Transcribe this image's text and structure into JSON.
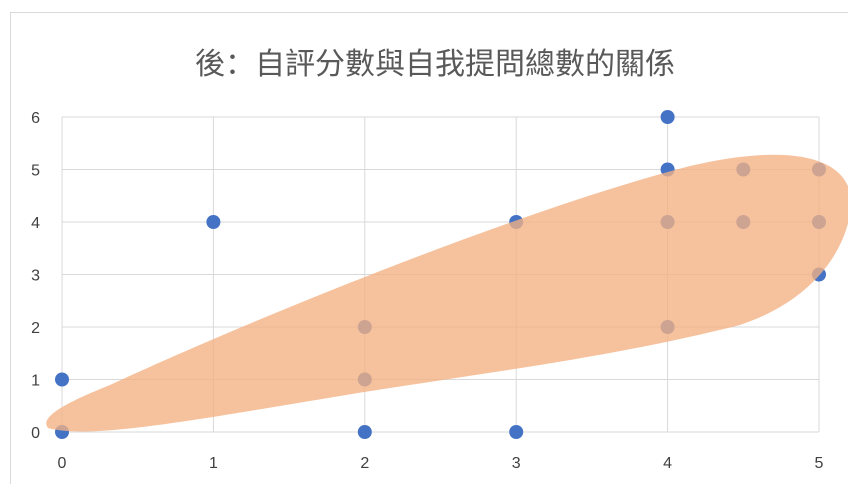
{
  "chart_data": {
    "type": "scatter",
    "title": "後：自評分數與自我提問總數的關係",
    "xlabel": "",
    "ylabel": "",
    "xlim": [
      0,
      5
    ],
    "ylim": [
      0,
      6
    ],
    "xticks": [
      "0",
      "1",
      "2",
      "3",
      "4",
      "5"
    ],
    "yticks": [
      "0",
      "1",
      "2",
      "3",
      "4",
      "5",
      "6"
    ],
    "grid": true,
    "legend": "none",
    "point_color": "#4472c4",
    "highlight_color": "#f4b183",
    "series": [
      {
        "points": [
          {
            "x": 0,
            "y": 0
          },
          {
            "x": 0,
            "y": 1
          },
          {
            "x": 1,
            "y": 4
          },
          {
            "x": 2,
            "y": 0
          },
          {
            "x": 2,
            "y": 1
          },
          {
            "x": 2,
            "y": 2
          },
          {
            "x": 3,
            "y": 0
          },
          {
            "x": 3,
            "y": 4
          },
          {
            "x": 4,
            "y": 2
          },
          {
            "x": 4,
            "y": 4
          },
          {
            "x": 4,
            "y": 5
          },
          {
            "x": 4,
            "y": 6
          },
          {
            "x": 4.5,
            "y": 4
          },
          {
            "x": 4.5,
            "y": 5
          },
          {
            "x": 5,
            "y": 3
          },
          {
            "x": 5,
            "y": 4
          },
          {
            "x": 5,
            "y": 5
          }
        ]
      }
    ]
  }
}
